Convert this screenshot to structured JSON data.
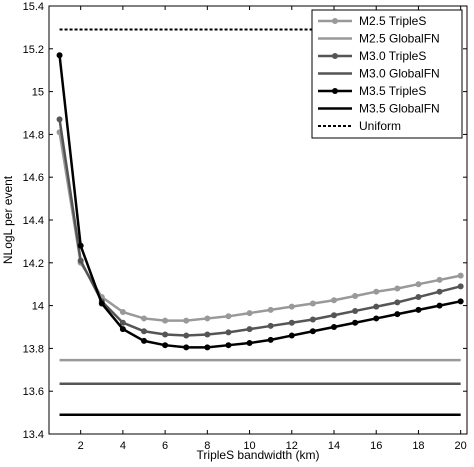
{
  "chart_data": {
    "type": "line",
    "title": "",
    "xlabel": "TripleS bandwidth (km)",
    "ylabel": "NLogL per event",
    "xlim": [
      0.5,
      20.3
    ],
    "ylim": [
      13.4,
      15.4
    ],
    "xticks": [
      2,
      4,
      6,
      8,
      10,
      12,
      14,
      16,
      18,
      20
    ],
    "yticks": [
      13.4,
      13.6,
      13.8,
      14,
      14.2,
      14.4,
      14.6,
      14.8,
      15,
      15.2,
      15.4
    ],
    "ytick_labels": [
      "13.4",
      "13.6",
      "13.8",
      "14",
      "14.2",
      "14.4",
      "14.6",
      "14.8",
      "15",
      "15.2",
      "15.4"
    ],
    "grid": false,
    "legend_position": "top-right",
    "x": [
      1,
      2,
      3,
      4,
      5,
      6,
      7,
      8,
      9,
      10,
      11,
      12,
      13,
      14,
      15,
      16,
      17,
      18,
      19,
      20
    ],
    "series": [
      {
        "name": "M2.5 TripleS",
        "color": "#999999",
        "marker": true,
        "values": [
          14.81,
          14.2,
          14.04,
          13.97,
          13.94,
          13.93,
          13.93,
          13.94,
          13.95,
          13.965,
          13.98,
          13.995,
          14.01,
          14.025,
          14.045,
          14.065,
          14.08,
          14.1,
          14.12,
          14.14
        ]
      },
      {
        "name": "M2.5 GlobalFN",
        "color": "#999999",
        "marker": false,
        "constant": 13.745
      },
      {
        "name": "M3.0 TripleS",
        "color": "#555555",
        "marker": true,
        "values": [
          14.87,
          14.21,
          14.02,
          13.92,
          13.88,
          13.865,
          13.86,
          13.865,
          13.875,
          13.89,
          13.905,
          13.92,
          13.935,
          13.955,
          13.975,
          13.995,
          14.015,
          14.04,
          14.065,
          14.09
        ]
      },
      {
        "name": "M3.0 GlobalFN",
        "color": "#555555",
        "marker": false,
        "constant": 13.635
      },
      {
        "name": "M3.5 TripleS",
        "color": "#000000",
        "marker": true,
        "values": [
          15.17,
          14.28,
          14.01,
          13.89,
          13.835,
          13.815,
          13.805,
          13.805,
          13.815,
          13.825,
          13.84,
          13.86,
          13.88,
          13.9,
          13.92,
          13.94,
          13.96,
          13.98,
          14.0,
          14.02
        ]
      },
      {
        "name": "M3.5 GlobalFN",
        "color": "#000000",
        "marker": false,
        "constant": 13.49
      },
      {
        "name": "Uniform",
        "color": "#000000",
        "marker": false,
        "dashed": true,
        "constant": 15.29
      }
    ]
  }
}
